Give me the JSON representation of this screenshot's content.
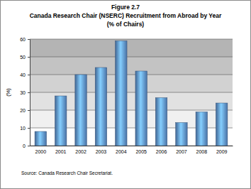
{
  "chart_data": {
    "type": "bar",
    "title": "Figure 2.7",
    "subtitle": [
      "Canada Research Chair (NSERC) Recruitment from Abroad by Year",
      "(% of Chairs)"
    ],
    "y_label": "(%)",
    "categories": [
      "2000",
      "2001",
      "2002",
      "2003",
      "2004",
      "2005",
      "2006",
      "2007",
      "2008",
      "2009"
    ],
    "values": [
      8,
      28,
      40,
      44,
      59,
      42,
      27,
      13,
      19,
      24
    ],
    "color": "#5a8ccc",
    "ylim": [
      0,
      60
    ],
    "yticks": [
      0,
      10,
      20,
      30,
      40,
      50,
      60
    ],
    "grid": true,
    "annotations": [
      "Source: Canada Research Chair Secretariat."
    ]
  }
}
